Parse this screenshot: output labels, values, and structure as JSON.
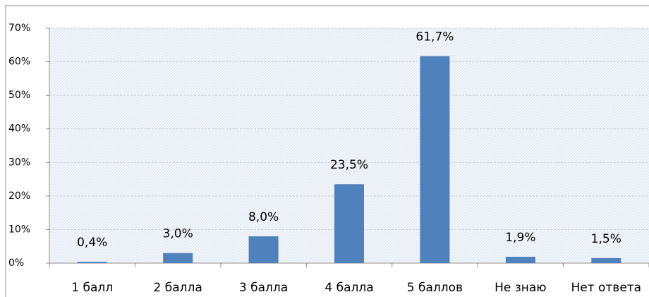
{
  "chart_data": {
    "type": "bar",
    "categories": [
      "1 балл",
      "2 балла",
      "3 балла",
      "4 балла",
      "5 баллов",
      "Не знаю",
      "Нет ответа"
    ],
    "values": [
      0.4,
      3.0,
      8.0,
      23.5,
      61.7,
      1.9,
      1.5
    ],
    "value_labels": [
      "0,4%",
      "3,0%",
      "8,0%",
      "23,5%",
      "61,7%",
      "1,9%",
      "1,5%"
    ],
    "color": "#4f81bd",
    "ylim": [
      0,
      70
    ],
    "yticks": [
      {
        "value": 0,
        "label": "0%"
      },
      {
        "value": 10,
        "label": "10%"
      },
      {
        "value": 20,
        "label": "20%"
      },
      {
        "value": 30,
        "label": "30%"
      },
      {
        "value": 40,
        "label": "40%"
      },
      {
        "value": 50,
        "label": "50%"
      },
      {
        "value": 60,
        "label": "60%"
      },
      {
        "value": 70,
        "label": "70%"
      }
    ],
    "grid": true
  }
}
